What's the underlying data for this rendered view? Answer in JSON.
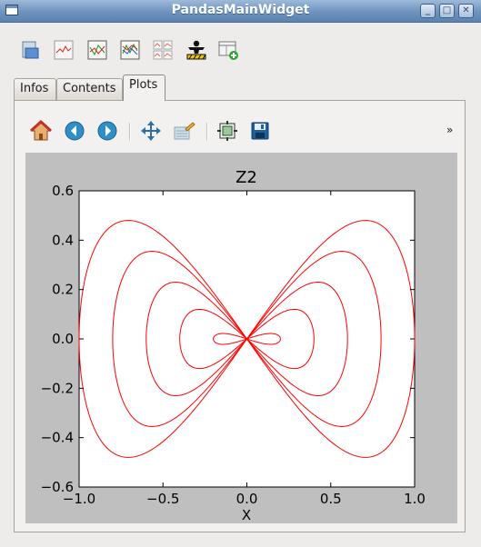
{
  "window": {
    "title": "PandasMainWidget",
    "controls": [
      "minimize",
      "maximize",
      "close"
    ]
  },
  "main_toolbar": {
    "icons": [
      "table-import-icon",
      "line-plot-icon",
      "multi-line-plot-icon",
      "overlay-plot-icon",
      "subplots-icon",
      "run-script-icon",
      "add-panel-icon"
    ]
  },
  "tabs": [
    {
      "label": "Infos",
      "active": false
    },
    {
      "label": "Contents",
      "active": false
    },
    {
      "label": "Plots",
      "active": true
    }
  ],
  "plot_toolbar": {
    "icons": [
      "home-icon",
      "back-icon",
      "forward-icon",
      "pan-icon",
      "zoom-icon",
      "configure-subplots-icon",
      "save-icon"
    ],
    "overflow_label": "»"
  },
  "chart_data": {
    "type": "line",
    "title": "Z2",
    "xlabel": "X",
    "ylabel": "",
    "xlim": [
      -1.0,
      1.0
    ],
    "ylim": [
      -0.6,
      0.6
    ],
    "xticks": [
      "−1.0",
      "−0.5",
      "0.0",
      "0.5",
      "1.0"
    ],
    "yticks": [
      "−0.6",
      "−0.4",
      "−0.2",
      "0.0",
      "0.2",
      "0.4",
      "0.6"
    ],
    "series_color": "#ff0000",
    "grid": false,
    "legend": false,
    "series": [
      {
        "a": 1.0,
        "b": 0.48
      },
      {
        "a": 0.8,
        "b": 0.355
      },
      {
        "a": 0.6,
        "b": 0.23
      },
      {
        "a": 0.4,
        "b": 0.12
      },
      {
        "a": 0.2,
        "b": 0.022
      }
    ]
  }
}
